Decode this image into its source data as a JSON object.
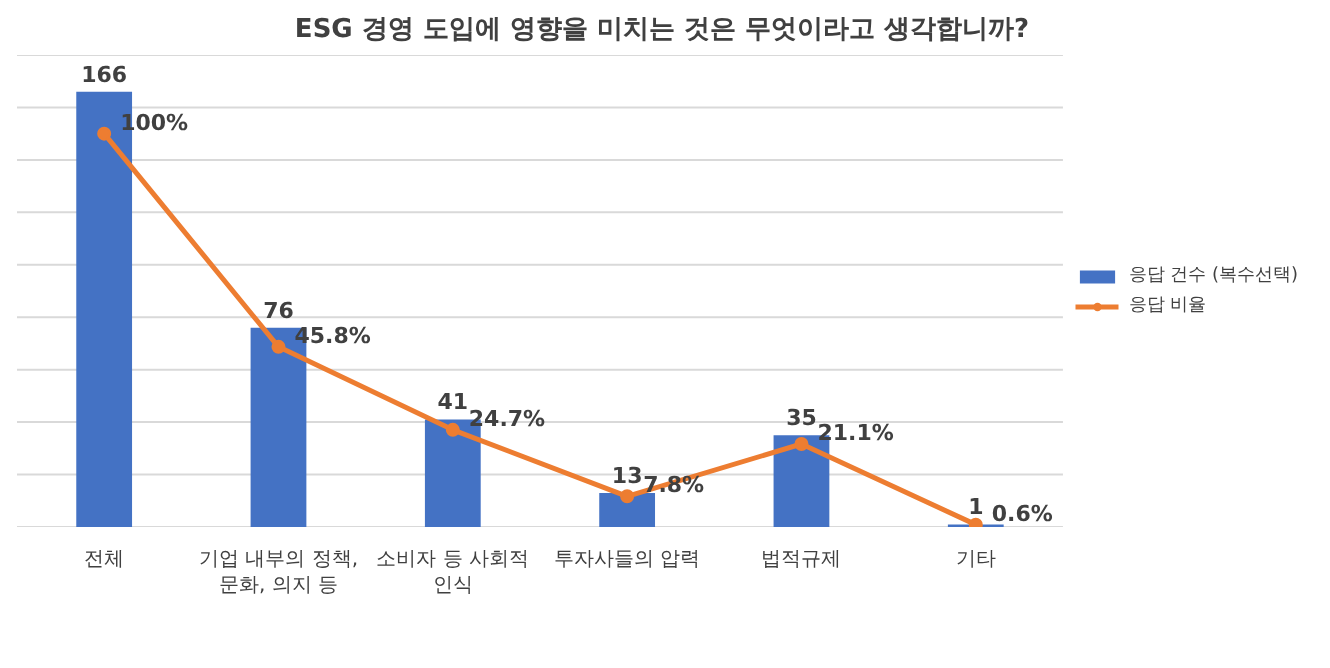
{
  "chart_data": {
    "type": "bar",
    "title": "ESG 경영 도입에 영향을 미치는 것은 무엇이라고 생각합니까?",
    "categories": [
      "전체",
      "기업 내부의 정책, 문화, 의지 등",
      "소비자 등 사회적 인식",
      "투자사들의 압력",
      "법적규제",
      "기타"
    ],
    "series": [
      {
        "name": "응답 건수 (복수선택)",
        "color": "#4472c4",
        "values": [
          166,
          76,
          41,
          13,
          35,
          1
        ]
      },
      {
        "name": "응답 비율",
        "type": "line",
        "axis": "y2",
        "color": "#ed7d31",
        "marker": "circle",
        "values": [
          100,
          45.8,
          24.7,
          7.8,
          21.1,
          0.6
        ],
        "value_labels": [
          "100%",
          "45.8%",
          "24.7%",
          "7.8%",
          "21.1%",
          "0.6%"
        ]
      }
    ],
    "data_labels": true,
    "yticks": [
      {
        "value": 0,
        "label": null
      },
      {
        "value": 20,
        "label": null
      },
      {
        "value": 40,
        "label": null
      },
      {
        "value": 60,
        "label": null
      },
      {
        "value": 80,
        "label": null
      },
      {
        "value": 100,
        "label": null
      },
      {
        "value": 120,
        "label": null
      },
      {
        "value": 140,
        "label": null
      },
      {
        "value": 160,
        "label": null
      },
      {
        "value": 180,
        "label": null
      }
    ],
    "y2lim": [
      0,
      120
    ],
    "grid": "y",
    "tick_labels": "x",
    "legend": "right"
  }
}
